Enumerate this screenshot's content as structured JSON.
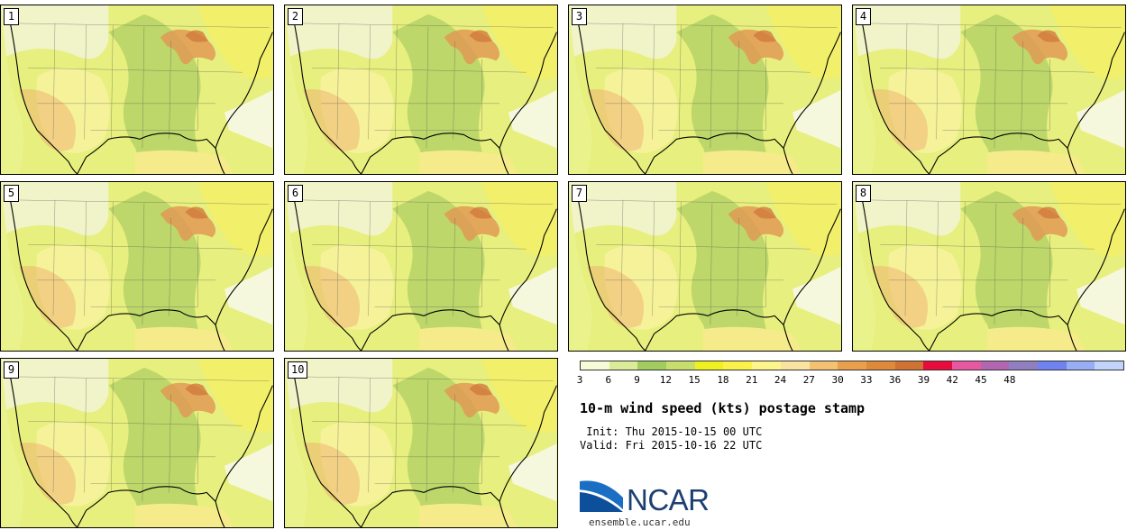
{
  "panels": [
    {
      "label": "1"
    },
    {
      "label": "2"
    },
    {
      "label": "3"
    },
    {
      "label": "4"
    },
    {
      "label": "5"
    },
    {
      "label": "6"
    },
    {
      "label": "7"
    },
    {
      "label": "8"
    },
    {
      "label": "9"
    },
    {
      "label": "10"
    }
  ],
  "colorbar": {
    "colors": [
      "#f6fbd8",
      "#dbeb9a",
      "#a3cc60",
      "#c7de6c",
      "#eef020",
      "#fcf14b",
      "#fcf58c",
      "#fae2a0",
      "#f2c172",
      "#e9a04c",
      "#de8a3a",
      "#cf7234",
      "#e80c3c",
      "#e659a0",
      "#b066b0",
      "#8f7fc0",
      "#6e82f0",
      "#97aef5",
      "#c2d4fa"
    ],
    "ticks": [
      "3",
      "6",
      "9",
      "12",
      "15",
      "18",
      "21",
      "24",
      "27",
      "30",
      "33",
      "36",
      "39",
      "42",
      "45",
      "48"
    ]
  },
  "title": "10-m wind speed (kts) postage stamp",
  "init": " Init: Thu 2015-10-15 00 UTC",
  "valid": "Valid: Fri 2015-10-16 22 UTC",
  "logo": {
    "text": "NCAR",
    "site": "ensemble.ucar.edu"
  }
}
